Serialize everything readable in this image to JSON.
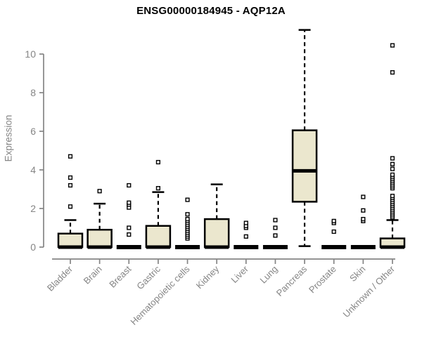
{
  "chart_data": {
    "type": "boxplot",
    "title": "ENSG00000184945 - AQP12A",
    "ylabel": "Expression",
    "xlabel": "",
    "yticks": [
      0,
      2,
      4,
      6,
      8,
      10
    ],
    "ylim": [
      -0.6,
      11.6
    ],
    "grid": false,
    "legend": false,
    "box_fill_color": "#ebe7ce",
    "box_stroke_color": "#000000",
    "axis_color": "#858585",
    "label_color": "#858585",
    "title_color": "#000000",
    "categories": [
      "Bladder",
      "Brain",
      "Breast",
      "Gastric",
      "Hematopoietic cells",
      "Kidney",
      "Liver",
      "Lung",
      "Pancreas",
      "Prostate",
      "Skin",
      "Unknown / Other"
    ],
    "boxes": [
      {
        "label": "Bladder",
        "whisker_low": 0,
        "q1": 0,
        "median": 0,
        "q3": 0.7,
        "whisker_high": 1.4,
        "outliers": [
          2.1,
          3.2,
          3.6,
          4.7
        ]
      },
      {
        "label": "Brain",
        "whisker_low": 0,
        "q1": 0,
        "median": 0,
        "q3": 0.9,
        "whisker_high": 2.25,
        "outliers": [
          2.9
        ]
      },
      {
        "label": "Breast",
        "whisker_low": 0,
        "q1": 0,
        "median": 0,
        "q3": 0,
        "whisker_high": 0,
        "outliers": [
          0.65,
          1.0,
          2.05,
          2.2,
          2.3,
          3.2
        ]
      },
      {
        "label": "Gastric",
        "whisker_low": 0,
        "q1": 0,
        "median": 0,
        "q3": 1.1,
        "whisker_high": 2.85,
        "outliers": [
          3.05,
          4.4
        ]
      },
      {
        "label": "Hematopoietic cells",
        "whisker_low": 0,
        "q1": 0,
        "median": 0,
        "q3": 0,
        "whisker_high": 0,
        "outliers": [
          0.45,
          0.55,
          0.65,
          0.75,
          0.85,
          0.95,
          1.05,
          1.15,
          1.25,
          1.35,
          1.45,
          1.7,
          2.45
        ]
      },
      {
        "label": "Kidney",
        "whisker_low": 0,
        "q1": 0,
        "median": 0,
        "q3": 1.45,
        "whisker_high": 3.25,
        "outliers": []
      },
      {
        "label": "Liver",
        "whisker_low": 0,
        "q1": 0,
        "median": 0,
        "q3": 0,
        "whisker_high": 0,
        "outliers": [
          0.55,
          1.0,
          1.1,
          1.25
        ]
      },
      {
        "label": "Lung",
        "whisker_low": 0,
        "q1": 0,
        "median": 0,
        "q3": 0,
        "whisker_high": 0,
        "outliers": [
          0.6,
          1.0,
          1.4
        ]
      },
      {
        "label": "Pancreas",
        "whisker_low": 0.05,
        "q1": 2.35,
        "median": 3.95,
        "q3": 6.05,
        "whisker_high": 11.25,
        "outliers": []
      },
      {
        "label": "Prostate",
        "whisker_low": 0,
        "q1": 0,
        "median": 0,
        "q3": 0,
        "whisker_high": 0,
        "outliers": [
          0.8,
          1.25,
          1.35
        ]
      },
      {
        "label": "Skin",
        "whisker_low": 0,
        "q1": 0,
        "median": 0,
        "q3": 0,
        "whisker_high": 0,
        "outliers": [
          1.35,
          1.45,
          1.9,
          2.6
        ]
      },
      {
        "label": "Unknown / Other",
        "whisker_low": 0,
        "q1": 0,
        "median": 0,
        "q3": 0.45,
        "whisker_high": 1.4,
        "outliers": [
          1.55,
          1.65,
          1.75,
          1.85,
          1.95,
          2.05,
          2.15,
          2.25,
          2.35,
          2.45,
          2.55,
          2.65,
          3.05,
          3.15,
          3.25,
          3.35,
          3.45,
          3.55,
          3.65,
          3.75,
          4.05,
          4.3,
          4.6,
          9.05,
          10.45
        ]
      }
    ]
  }
}
